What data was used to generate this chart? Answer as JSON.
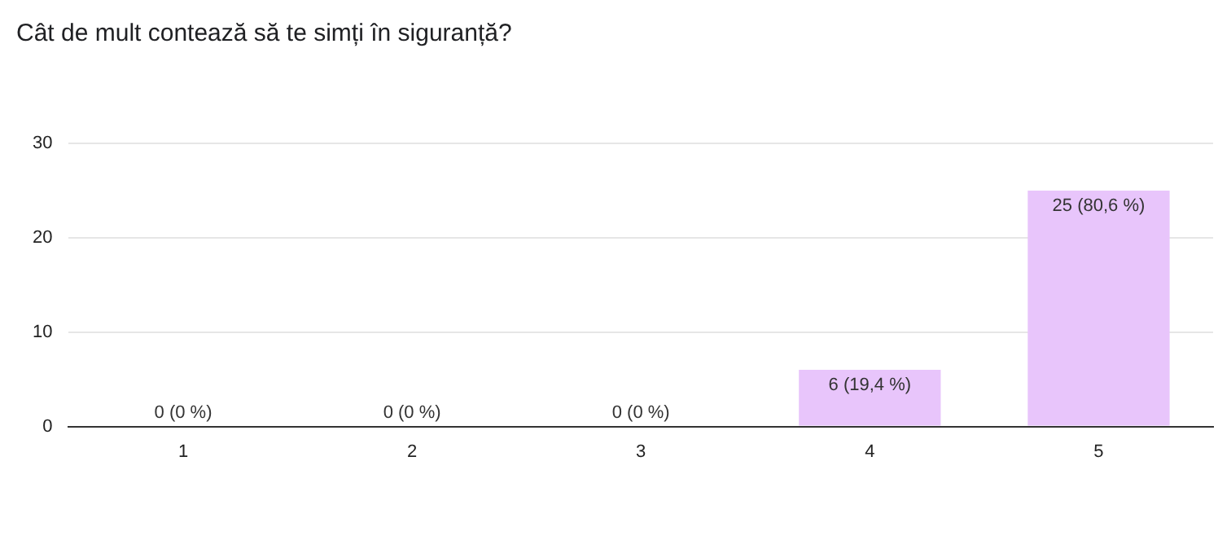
{
  "chart_data": {
    "type": "bar",
    "title": "Cât de mult contează să te simți în siguranță?",
    "categories": [
      "1",
      "2",
      "3",
      "4",
      "5"
    ],
    "values": [
      0,
      0,
      0,
      6,
      25
    ],
    "value_labels": [
      "0 (0 %)",
      "0 (0 %)",
      "0 (0 %)",
      "6 (19,4 %)",
      "25 (80,6 %)"
    ],
    "color": "#e8c5fb",
    "ylim": [
      0,
      30
    ],
    "yticks": [
      0,
      10,
      20,
      30
    ],
    "grid": "y"
  }
}
